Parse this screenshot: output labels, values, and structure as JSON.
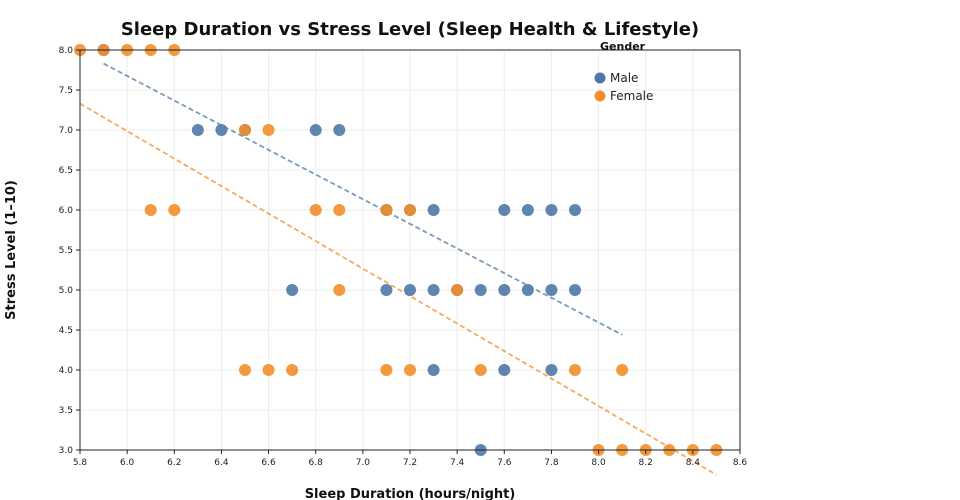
{
  "chart_data": {
    "type": "scatter",
    "title": "Sleep Duration vs Stress Level (Sleep Health & Lifestyle)",
    "xlabel": "Sleep Duration (hours/night)",
    "ylabel": "Stress Level (1–10)",
    "xlim": [
      5.8,
      8.6
    ],
    "ylim": [
      3.0,
      8.0
    ],
    "xticks": [
      "5.8",
      "6.0",
      "6.2",
      "6.4",
      "6.6",
      "6.8",
      "7.0",
      "7.2",
      "7.4",
      "7.6",
      "7.8",
      "8.0",
      "8.2",
      "8.4",
      "8.6"
    ],
    "yticks": [
      "3.0",
      "3.5",
      "4.0",
      "4.5",
      "5.0",
      "5.5",
      "6.0",
      "6.5",
      "7.0",
      "7.5",
      "8.0"
    ],
    "grid": true,
    "legend": {
      "title": "Gender",
      "placement": "top-right"
    },
    "series": [
      {
        "name": "Male",
        "color": "#4e79a7",
        "points": [
          [
            5.9,
            8
          ],
          [
            6.3,
            7
          ],
          [
            6.4,
            7
          ],
          [
            6.5,
            7
          ],
          [
            6.8,
            7
          ],
          [
            6.9,
            7
          ],
          [
            7.1,
            6
          ],
          [
            7.2,
            6
          ],
          [
            7.3,
            6
          ],
          [
            7.6,
            6
          ],
          [
            7.7,
            6
          ],
          [
            7.8,
            6
          ],
          [
            7.9,
            6
          ],
          [
            6.7,
            5
          ],
          [
            7.1,
            5
          ],
          [
            7.2,
            5
          ],
          [
            7.3,
            5
          ],
          [
            7.4,
            5
          ],
          [
            7.5,
            5
          ],
          [
            7.6,
            5
          ],
          [
            7.7,
            5
          ],
          [
            7.8,
            5
          ],
          [
            7.9,
            5
          ],
          [
            7.3,
            4
          ],
          [
            7.6,
            4
          ],
          [
            7.8,
            4
          ],
          [
            7.5,
            3
          ]
        ],
        "trendline": [
          [
            5.9,
            7.83
          ],
          [
            8.1,
            4.44
          ]
        ]
      },
      {
        "name": "Female",
        "color": "#f28e2b",
        "points": [
          [
            5.8,
            8
          ],
          [
            5.9,
            8
          ],
          [
            6.0,
            8
          ],
          [
            6.1,
            8
          ],
          [
            6.2,
            8
          ],
          [
            6.5,
            7
          ],
          [
            6.6,
            7
          ],
          [
            6.1,
            6
          ],
          [
            6.2,
            6
          ],
          [
            6.8,
            6
          ],
          [
            6.9,
            6
          ],
          [
            7.1,
            6
          ],
          [
            7.2,
            6
          ],
          [
            6.9,
            5
          ],
          [
            7.4,
            5
          ],
          [
            6.5,
            4
          ],
          [
            6.6,
            4
          ],
          [
            6.7,
            4
          ],
          [
            7.1,
            4
          ],
          [
            7.2,
            4
          ],
          [
            7.5,
            4
          ],
          [
            7.9,
            4
          ],
          [
            8.1,
            4
          ],
          [
            8.0,
            3
          ],
          [
            8.1,
            3
          ],
          [
            8.2,
            3
          ],
          [
            8.3,
            3
          ],
          [
            8.4,
            3
          ],
          [
            8.5,
            3
          ]
        ],
        "trendline": [
          [
            5.8,
            7.33
          ],
          [
            8.5,
            2.69
          ]
        ]
      }
    ]
  }
}
